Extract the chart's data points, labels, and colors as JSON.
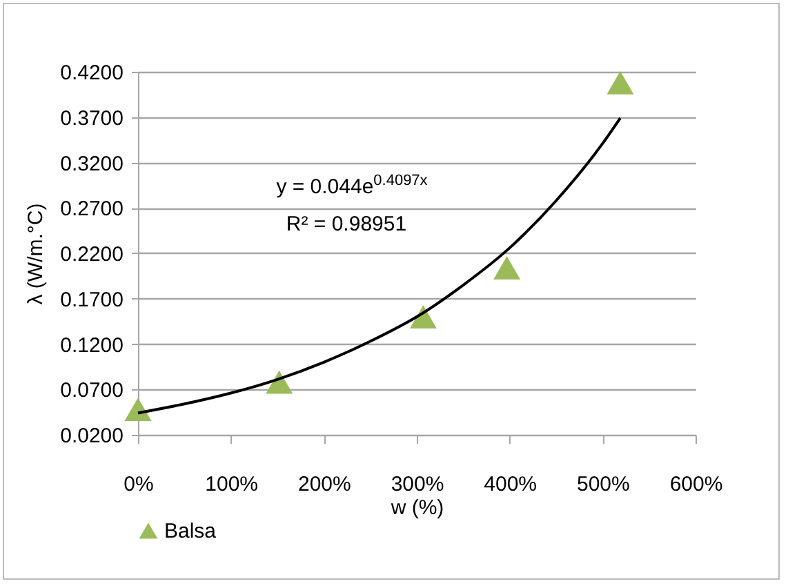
{
  "chart_data": {
    "type": "scatter",
    "xlabel": "w (%)",
    "ylabel": "λ (W/m.°C)",
    "x": [
      0,
      152,
      307,
      397,
      519
    ],
    "series": [
      {
        "name": "Balsa",
        "type": "scatter",
        "marker": "triangle",
        "color": "#9bbb59",
        "values": [
          0.048,
          0.078,
          0.15,
          0.204,
          0.408
        ]
      },
      {
        "type": "line",
        "marker": "none",
        "color": "#000000",
        "x": [
          0,
          50,
          100,
          150,
          200,
          250,
          300,
          350,
          400,
          450,
          500,
          519
        ],
        "values": [
          0.044,
          0.054,
          0.066,
          0.081,
          0.1,
          0.123,
          0.15,
          0.185,
          0.226,
          0.278,
          0.341,
          0.369
        ]
      }
    ],
    "xlim": [
      0,
      600
    ],
    "xticks": [
      {
        "value": 0,
        "label": "0%"
      },
      {
        "value": 100,
        "label": "100%"
      },
      {
        "value": 200,
        "label": "200%"
      },
      {
        "value": 300,
        "label": "300%"
      },
      {
        "value": 400,
        "label": "400%"
      },
      {
        "value": 500,
        "label": "500%"
      },
      {
        "value": 600,
        "label": "600%"
      }
    ],
    "ylim": [
      0.02,
      0.42
    ],
    "yticks": [
      {
        "value": 0.02,
        "label": "0.0200"
      },
      {
        "value": 0.07,
        "label": "0.0700"
      },
      {
        "value": 0.12,
        "label": "0.1200"
      },
      {
        "value": 0.17,
        "label": "0.1700"
      },
      {
        "value": 0.22,
        "label": "0.2200"
      },
      {
        "value": 0.27,
        "label": "0.2700"
      },
      {
        "value": 0.32,
        "label": "0.3200"
      },
      {
        "value": 0.37,
        "label": "0.3700"
      },
      {
        "value": 0.42,
        "label": "0.4200"
      }
    ],
    "grid": "y",
    "legend": "bottom",
    "annotations": [
      "y = 0.044e$^{0.4097x}$",
      "R² = 0.98951"
    ]
  }
}
